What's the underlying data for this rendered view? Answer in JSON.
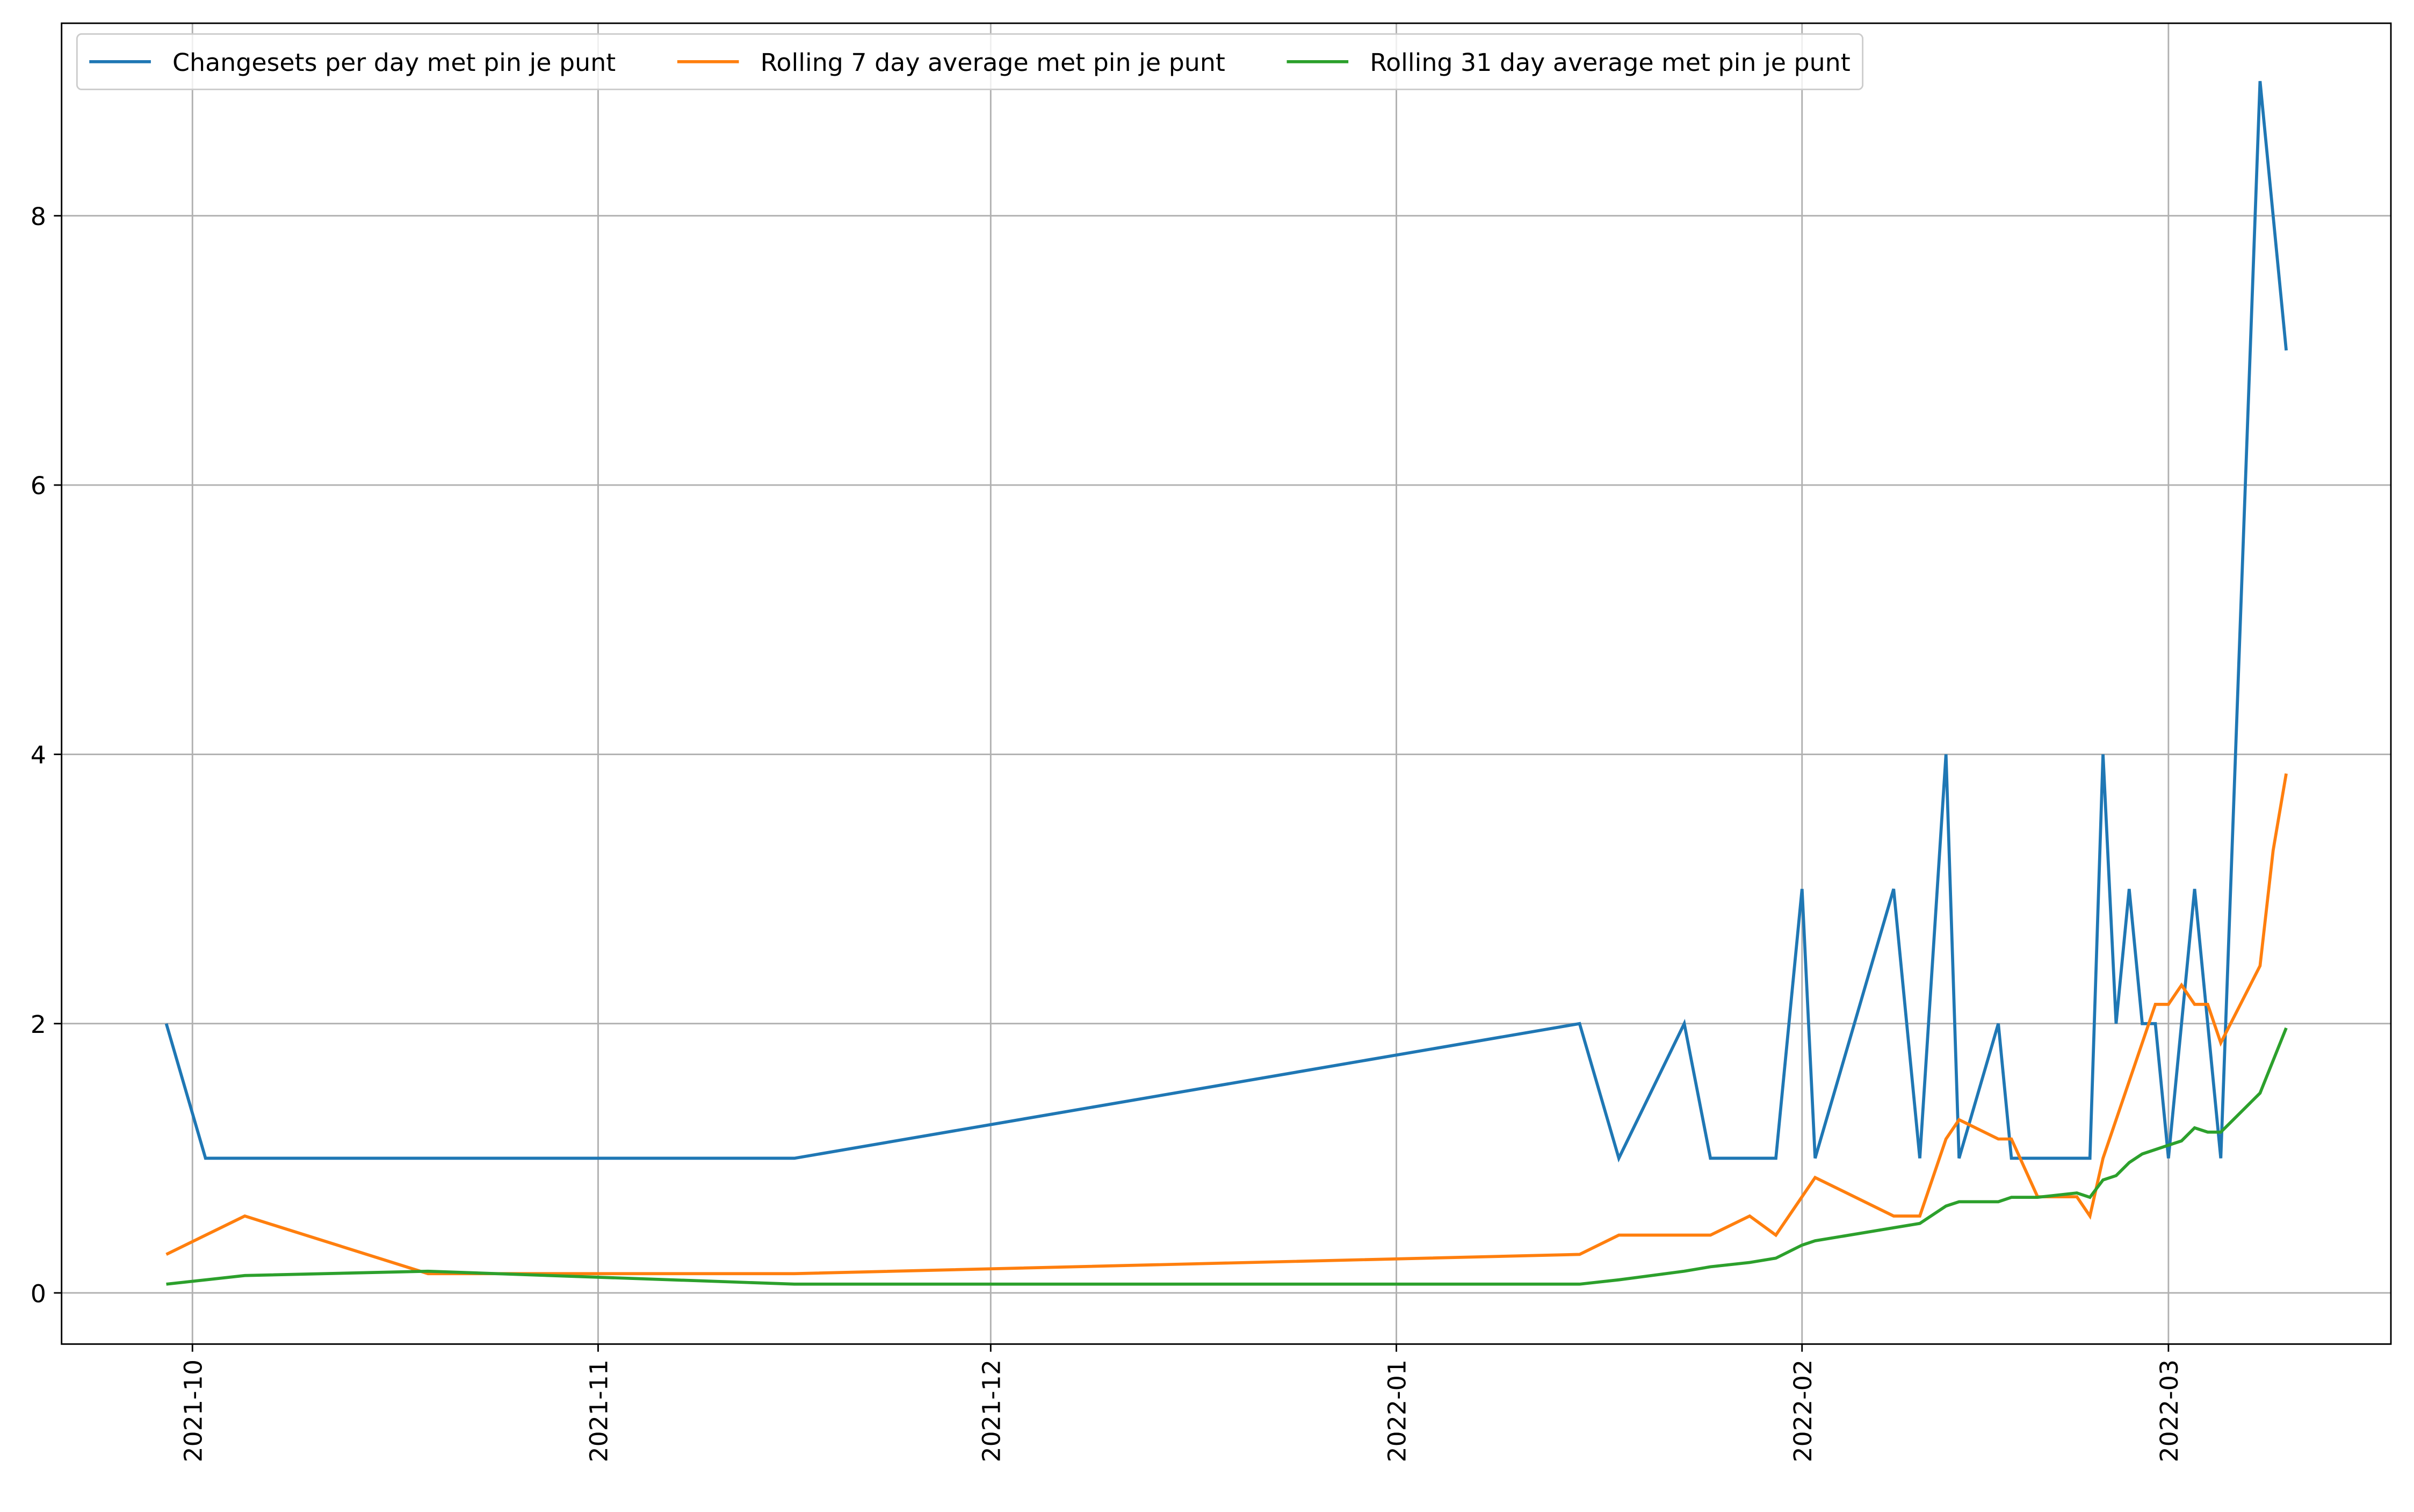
{
  "chart_data": {
    "type": "line",
    "xlim": [
      "2021-09-21",
      "2022-03-18"
    ],
    "xticks": [
      {
        "value": "2021-10-01",
        "label": "2021-10"
      },
      {
        "value": "2021-11-01",
        "label": "2021-11"
      },
      {
        "value": "2021-12-01",
        "label": "2021-12"
      },
      {
        "value": "2022-01-01",
        "label": "2022-01"
      },
      {
        "value": "2022-02-01",
        "label": "2022-02"
      },
      {
        "value": "2022-03-01",
        "label": "2022-03"
      }
    ],
    "ylim": [
      -0.38,
      9.43
    ],
    "yticks": [
      0,
      2,
      4,
      6,
      8
    ],
    "grid": true,
    "legend": "upper left",
    "series": [
      {
        "name": "Changesets per day met pin je punt",
        "color": "#1f77b4",
        "x": [
          "2021-09-29",
          "2021-10-02",
          "2021-11-16",
          "2022-01-15",
          "2022-01-18",
          "2022-01-23",
          "2022-01-25",
          "2022-01-30",
          "2022-02-01",
          "2022-02-02",
          "2022-02-08",
          "2022-02-10",
          "2022-02-12",
          "2022-02-13",
          "2022-02-16",
          "2022-02-17",
          "2022-02-23",
          "2022-02-24",
          "2022-02-25",
          "2022-02-26",
          "2022-02-27",
          "2022-02-28",
          "2022-03-01",
          "2022-03-03",
          "2022-03-05",
          "2022-03-08",
          "2022-03-10"
        ],
        "values": [
          2,
          1,
          1,
          2,
          1,
          2,
          1,
          1,
          3,
          1,
          3,
          1,
          4,
          1,
          2,
          1,
          1,
          4,
          2,
          3,
          2,
          2,
          1,
          3,
          1,
          9,
          7
        ]
      },
      {
        "name": "Rolling 7 day average met pin je punt",
        "color": "#ff7f0e",
        "x": [
          "2021-09-29",
          "2021-10-05",
          "2021-10-19",
          "2021-11-16",
          "2022-01-15",
          "2022-01-18",
          "2022-01-25",
          "2022-01-28",
          "2022-01-30",
          "2022-02-02",
          "2022-02-08",
          "2022-02-10",
          "2022-02-12",
          "2022-02-13",
          "2022-02-16",
          "2022-02-17",
          "2022-02-19",
          "2022-02-22",
          "2022-02-23",
          "2022-02-24",
          "2022-02-28",
          "2022-03-01",
          "2022-03-02",
          "2022-03-03",
          "2022-03-04",
          "2022-03-05",
          "2022-03-08",
          "2022-03-09",
          "2022-03-10"
        ],
        "values": [
          0.286,
          0.571,
          0.143,
          0.143,
          0.286,
          0.429,
          0.429,
          0.571,
          0.429,
          0.857,
          0.571,
          0.571,
          1.143,
          1.286,
          1.143,
          1.143,
          0.714,
          0.714,
          0.571,
          1.0,
          2.143,
          2.143,
          2.286,
          2.143,
          2.143,
          1.857,
          2.429,
          3.286,
          3.857
        ]
      },
      {
        "name": "Rolling 31 day average met pin je punt",
        "color": "#2ca02c",
        "x": [
          "2021-09-29",
          "2021-10-05",
          "2021-10-19",
          "2021-11-16",
          "2022-01-15",
          "2022-01-18",
          "2022-01-23",
          "2022-01-25",
          "2022-01-28",
          "2022-01-30",
          "2022-02-01",
          "2022-02-02",
          "2022-02-10",
          "2022-02-12",
          "2022-02-13",
          "2022-02-16",
          "2022-02-17",
          "2022-02-19",
          "2022-02-22",
          "2022-02-23",
          "2022-02-24",
          "2022-02-25",
          "2022-02-26",
          "2022-02-27",
          "2022-03-01",
          "2022-03-02",
          "2022-03-03",
          "2022-03-04",
          "2022-03-05",
          "2022-03-08",
          "2022-03-10"
        ],
        "values": [
          0.065,
          0.129,
          0.161,
          0.065,
          0.065,
          0.097,
          0.161,
          0.194,
          0.226,
          0.258,
          0.355,
          0.387,
          0.516,
          0.645,
          0.677,
          0.677,
          0.71,
          0.71,
          0.742,
          0.71,
          0.839,
          0.871,
          0.968,
          1.032,
          1.097,
          1.129,
          1.226,
          1.194,
          1.194,
          1.484,
          1.968
        ]
      }
    ]
  }
}
